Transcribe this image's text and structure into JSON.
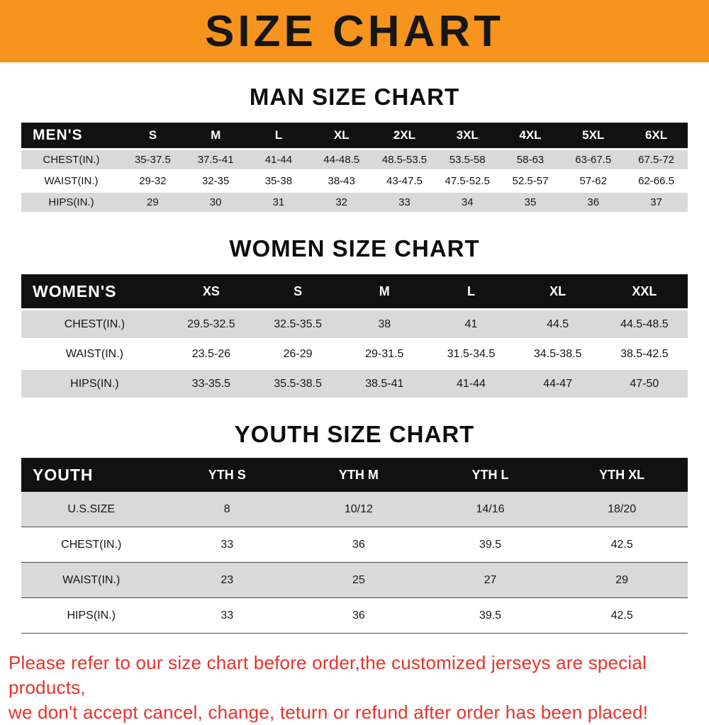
{
  "banner": {
    "title": "SIZE CHART"
  },
  "colors": {
    "banner-bg": "#f7941e",
    "header-bg": "#111111",
    "stripe": "#d9d9d9",
    "footer-red": "#e8322b"
  },
  "sections": [
    {
      "heading": "MAN SIZE CHART",
      "style": "men",
      "header": [
        "MEN'S",
        "S",
        "M",
        "L",
        "XL",
        "2XL",
        "3XL",
        "4XL",
        "5XL",
        "6XL"
      ],
      "rows": [
        [
          "CHEST(IN.)",
          "35-37.5",
          "37.5-41",
          "41-44",
          "44-48.5",
          "48.5-53.5",
          "53.5-58",
          "58-63",
          "63-67.5",
          "67.5-72"
        ],
        [
          "WAIST(IN.)",
          "29-32",
          "32-35",
          "35-38",
          "38-43",
          "43-47.5",
          "47.5-52.5",
          "52.5-57",
          "57-62",
          "62-66.5"
        ],
        [
          "HIPS(IN.)",
          "29",
          "30",
          "31",
          "32",
          "33",
          "34",
          "35",
          "36",
          "37"
        ]
      ]
    },
    {
      "heading": "WOMEN SIZE CHART",
      "style": "women",
      "header": [
        "WOMEN'S",
        "XS",
        "S",
        "M",
        "L",
        "XL",
        "XXL"
      ],
      "rows": [
        [
          "CHEST(IN.)",
          "29.5-32.5",
          "32.5-35.5",
          "38",
          "41",
          "44.5",
          "44.5-48.5"
        ],
        [
          "WAIST(IN.)",
          "23.5-26",
          "26-29",
          "29-31.5",
          "31.5-34.5",
          "34.5-38.5",
          "38.5-42.5"
        ],
        [
          "HIPS(IN.)",
          "33-35.5",
          "35.5-38.5",
          "38.5-41",
          "41-44",
          "44-47",
          "47-50"
        ]
      ]
    },
    {
      "heading": "YOUTH SIZE CHART",
      "style": "youth",
      "header": [
        "YOUTH",
        "YTH S",
        "YTH M",
        "YTH L",
        "YTH XL"
      ],
      "rows": [
        [
          "U.S.SIZE",
          "8",
          "10/12",
          "14/16",
          "18/20"
        ],
        [
          "CHEST(IN.)",
          "33",
          "36",
          "39.5",
          "42.5"
        ],
        [
          "WAIST(IN.)",
          "23",
          "25",
          "27",
          "29"
        ],
        [
          "HIPS(IN.)",
          "33",
          "36",
          "39.5",
          "42.5"
        ]
      ]
    }
  ],
  "footer": {
    "line1": "Please refer to our size chart before order,the customized jerseys are special products,",
    "line2": "we don't accept cancel, change, teturn or refund after order has been placed!"
  }
}
